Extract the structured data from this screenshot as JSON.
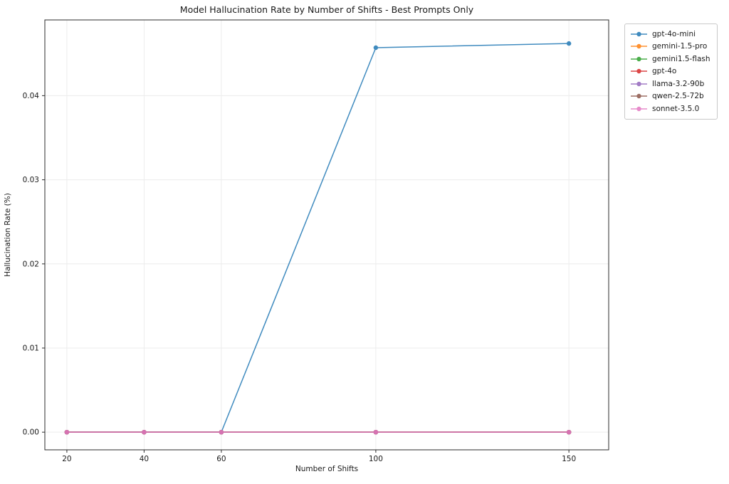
{
  "chart_data": {
    "type": "line",
    "title": "Model Hallucination Rate by Number of Shifts - Best Prompts Only",
    "xlabel": "Number of Shifts",
    "ylabel": "Hallucination Rate (%)",
    "x": [
      20,
      40,
      60,
      100,
      150
    ],
    "x_ticks": [
      20,
      40,
      60,
      100,
      150
    ],
    "y_ticks": [
      0,
      0.01,
      0.02,
      0.03,
      0.04
    ],
    "y_tick_labels": [
      "0.00",
      "0.01",
      "0.02",
      "0.03",
      "0.04"
    ],
    "xlim": [
      14.3,
      160.3
    ],
    "ylim": [
      -0.0021,
      0.049
    ],
    "grid": true,
    "legend_position": "outside-right-top",
    "series": [
      {
        "name": "gpt-4o-mini",
        "color": "#1f77b4",
        "values": [
          0,
          0,
          0,
          0.0457,
          0.0462
        ]
      },
      {
        "name": "gemini-1.5-pro",
        "color": "#ff7f0e",
        "values": [
          0,
          0,
          0,
          0,
          0
        ]
      },
      {
        "name": "gemini1.5-flash",
        "color": "#2ca02c",
        "values": [
          0,
          0,
          0,
          0,
          0
        ]
      },
      {
        "name": "gpt-4o",
        "color": "#d62728",
        "values": [
          0,
          0,
          0,
          0,
          0
        ]
      },
      {
        "name": "llama-3.2-90b",
        "color": "#9467bd",
        "values": [
          0,
          0,
          0,
          0,
          0
        ]
      },
      {
        "name": "qwen-2.5-72b",
        "color": "#8c564b",
        "values": [
          0,
          0,
          0,
          0,
          0
        ]
      },
      {
        "name": "sonnet-3.5.0",
        "color": "#e377c2",
        "values": [
          0,
          0,
          0,
          0,
          0
        ]
      }
    ]
  }
}
